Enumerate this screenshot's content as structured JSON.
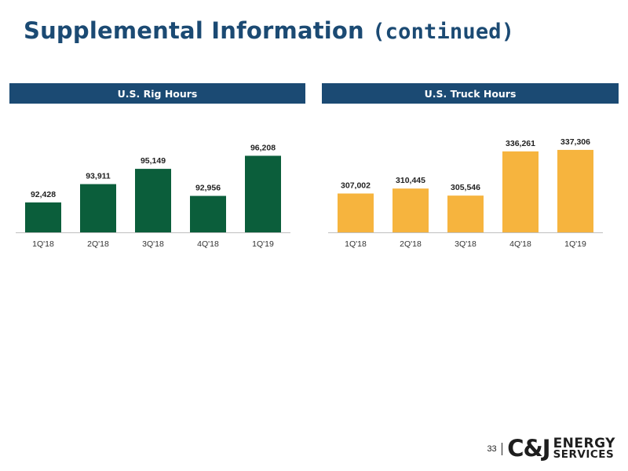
{
  "page": {
    "title_main": "Supplemental Information",
    "title_cont": "(continued)",
    "page_number": "33"
  },
  "logo": {
    "mark": "C&J",
    "word1": "ENERGY",
    "word2": "SERVICES"
  },
  "panels": {
    "rig": {
      "header": "U.S. Rig Hours"
    },
    "truck": {
      "header": "U.S. Truck Hours"
    }
  },
  "chart_data": [
    {
      "type": "bar",
      "title": "U.S. Rig Hours",
      "categories": [
        "1Q'18",
        "2Q'18",
        "3Q'18",
        "4Q'18",
        "1Q'19"
      ],
      "values": [
        92428,
        93911,
        95149,
        92956,
        96208
      ],
      "value_labels": [
        "92,428",
        "93,911",
        "95,149",
        "92,956",
        "96,208"
      ],
      "color": "#0b5e3b",
      "xlabel": "",
      "ylabel": "",
      "ylim": [
        90000,
        97000
      ],
      "grid": false,
      "legend": "none"
    },
    {
      "type": "bar",
      "title": "U.S. Truck Hours",
      "categories": [
        "1Q'18",
        "2Q'18",
        "3Q'18",
        "4Q'18",
        "1Q'19"
      ],
      "values": [
        307002,
        310445,
        305546,
        336261,
        337306
      ],
      "value_labels": [
        "307,002",
        "310,445",
        "305,546",
        "336,261",
        "337,306"
      ],
      "color": "#f6b43e",
      "xlabel": "",
      "ylabel": "",
      "ylim": [
        280000,
        340000
      ],
      "grid": false,
      "legend": "none"
    }
  ]
}
